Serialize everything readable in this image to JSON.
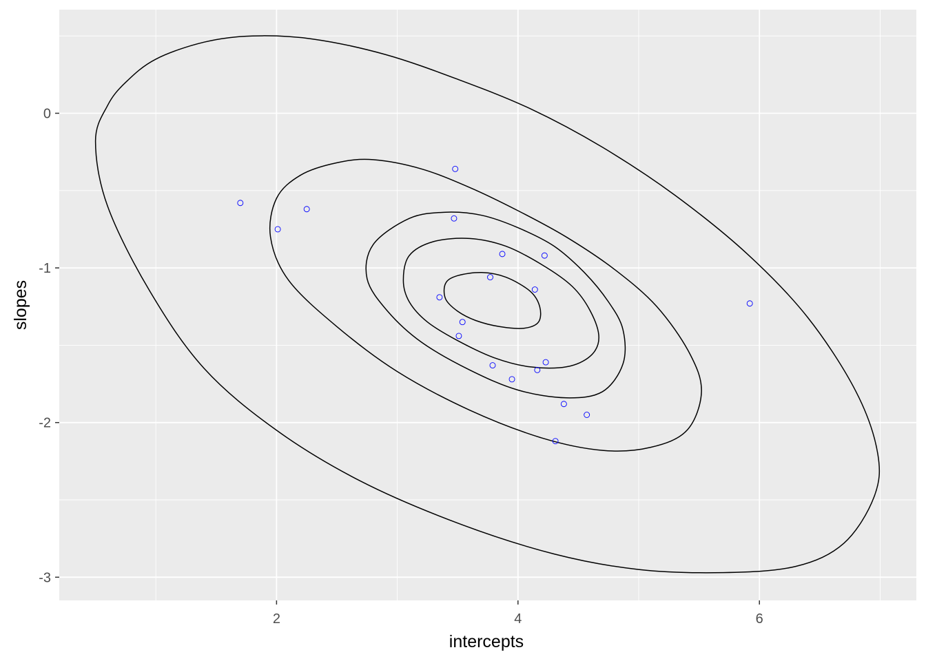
{
  "chart_data": {
    "type": "scatter",
    "title": "",
    "xlabel": "intercepts",
    "ylabel": "slopes",
    "xlim": [
      0.2,
      7.3
    ],
    "ylim": [
      -3.15,
      0.67
    ],
    "x_ticks": [
      2,
      4,
      6
    ],
    "x_tick_labels": [
      "2",
      "4",
      "6"
    ],
    "y_ticks": [
      0,
      -1,
      -2,
      -3
    ],
    "y_tick_labels": [
      "0",
      "-1",
      "-2",
      "-3"
    ],
    "grid": true,
    "panel_background": "#ebebeb",
    "grid_color": "#ffffff",
    "point_color": "#0000ff",
    "contour_color": "#000000",
    "points": {
      "x": [
        3.48,
        1.7,
        2.25,
        2.01,
        3.47,
        3.87,
        4.22,
        3.77,
        4.14,
        3.35,
        3.54,
        3.51,
        4.23,
        3.79,
        4.16,
        3.95,
        4.38,
        4.57,
        4.31,
        5.92
      ],
      "y": [
        -0.36,
        -0.58,
        -0.62,
        -0.75,
        -0.68,
        -0.91,
        -0.92,
        -1.06,
        -1.14,
        -1.19,
        -1.35,
        -1.44,
        -1.61,
        -1.63,
        -1.66,
        -1.72,
        -1.88,
        -1.95,
        -2.12,
        -1.23
      ]
    },
    "contours": [
      {
        "level": 1,
        "points": [
          [
            3.4,
            -1.1
          ],
          [
            3.5,
            -1.05
          ],
          [
            3.7,
            -1.03
          ],
          [
            3.9,
            -1.06
          ],
          [
            4.1,
            -1.15
          ],
          [
            4.18,
            -1.25
          ],
          [
            4.17,
            -1.35
          ],
          [
            4.05,
            -1.39
          ],
          [
            3.85,
            -1.38
          ],
          [
            3.65,
            -1.34
          ],
          [
            3.5,
            -1.28
          ],
          [
            3.4,
            -1.2
          ],
          [
            3.4,
            -1.1
          ]
        ]
      },
      {
        "level": 2,
        "points": [
          [
            3.1,
            -0.92
          ],
          [
            3.3,
            -0.83
          ],
          [
            3.6,
            -0.81
          ],
          [
            3.9,
            -0.86
          ],
          [
            4.2,
            -0.98
          ],
          [
            4.45,
            -1.12
          ],
          [
            4.6,
            -1.28
          ],
          [
            4.67,
            -1.45
          ],
          [
            4.6,
            -1.57
          ],
          [
            4.4,
            -1.64
          ],
          [
            4.1,
            -1.64
          ],
          [
            3.8,
            -1.58
          ],
          [
            3.5,
            -1.47
          ],
          [
            3.25,
            -1.35
          ],
          [
            3.1,
            -1.22
          ],
          [
            3.05,
            -1.08
          ],
          [
            3.1,
            -0.92
          ]
        ]
      },
      {
        "level": 3,
        "points": [
          [
            2.8,
            -0.85
          ],
          [
            3.1,
            -0.68
          ],
          [
            3.4,
            -0.64
          ],
          [
            3.7,
            -0.66
          ],
          [
            4.0,
            -0.74
          ],
          [
            4.3,
            -0.86
          ],
          [
            4.55,
            -1.03
          ],
          [
            4.75,
            -1.22
          ],
          [
            4.87,
            -1.4
          ],
          [
            4.87,
            -1.62
          ],
          [
            4.7,
            -1.8
          ],
          [
            4.4,
            -1.84
          ],
          [
            4.0,
            -1.79
          ],
          [
            3.6,
            -1.66
          ],
          [
            3.2,
            -1.48
          ],
          [
            2.92,
            -1.28
          ],
          [
            2.75,
            -1.07
          ],
          [
            2.8,
            -0.85
          ]
        ]
      },
      {
        "level": 4,
        "points": [
          [
            2.0,
            -0.55
          ],
          [
            2.2,
            -0.4
          ],
          [
            2.5,
            -0.32
          ],
          [
            2.8,
            -0.3
          ],
          [
            3.2,
            -0.36
          ],
          [
            3.6,
            -0.48
          ],
          [
            4.0,
            -0.63
          ],
          [
            4.4,
            -0.8
          ],
          [
            4.8,
            -1.01
          ],
          [
            5.15,
            -1.25
          ],
          [
            5.42,
            -1.55
          ],
          [
            5.52,
            -1.8
          ],
          [
            5.4,
            -2.05
          ],
          [
            5.1,
            -2.16
          ],
          [
            4.7,
            -2.18
          ],
          [
            4.2,
            -2.1
          ],
          [
            3.6,
            -1.92
          ],
          [
            3.0,
            -1.67
          ],
          [
            2.5,
            -1.38
          ],
          [
            2.1,
            -1.08
          ],
          [
            1.95,
            -0.8
          ],
          [
            2.0,
            -0.55
          ]
        ]
      },
      {
        "level": 5,
        "points": [
          [
            1.0,
            0.35
          ],
          [
            1.4,
            0.46
          ],
          [
            1.8,
            0.5
          ],
          [
            2.3,
            0.48
          ],
          [
            2.9,
            0.38
          ],
          [
            3.5,
            0.22
          ],
          [
            4.1,
            0.03
          ],
          [
            4.7,
            -0.22
          ],
          [
            5.3,
            -0.53
          ],
          [
            5.9,
            -0.91
          ],
          [
            6.4,
            -1.32
          ],
          [
            6.8,
            -1.8
          ],
          [
            6.98,
            -2.2
          ],
          [
            6.95,
            -2.48
          ],
          [
            6.7,
            -2.78
          ],
          [
            6.3,
            -2.93
          ],
          [
            5.7,
            -2.97
          ],
          [
            5.0,
            -2.95
          ],
          [
            4.3,
            -2.85
          ],
          [
            3.5,
            -2.65
          ],
          [
            2.7,
            -2.38
          ],
          [
            2.0,
            -2.05
          ],
          [
            1.4,
            -1.65
          ],
          [
            0.95,
            -1.15
          ],
          [
            0.6,
            -0.6
          ],
          [
            0.5,
            -0.18
          ],
          [
            0.6,
            0.05
          ],
          [
            0.75,
            0.2
          ],
          [
            1.0,
            0.35
          ]
        ]
      }
    ]
  }
}
